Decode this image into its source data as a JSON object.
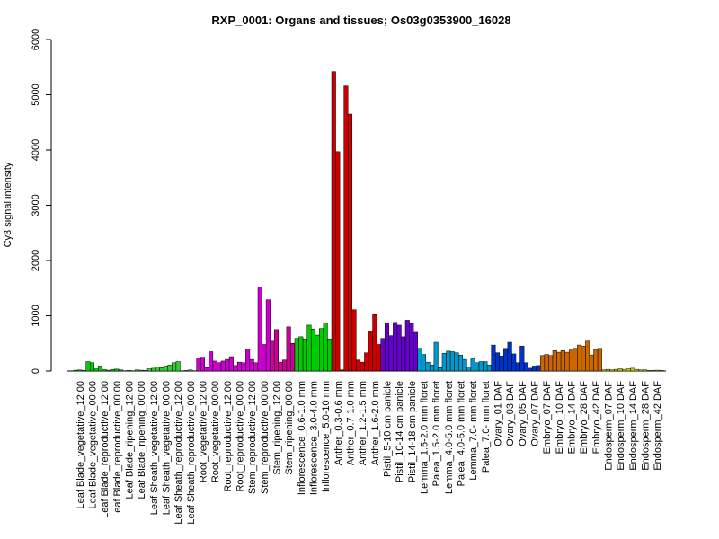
{
  "chart_data": {
    "type": "bar",
    "title": "RXP_0001: Organs and tissues; Os03g0353900_16028",
    "xlabel": "",
    "ylabel": "Cy3 signal intensity",
    "ylim": [
      0,
      6000
    ],
    "yticks": [
      0,
      1000,
      2000,
      3000,
      4000,
      5000,
      6000
    ],
    "grid": false,
    "categories": [
      "Leaf Blade_vegetative_12:00",
      "Leaf Blade_vegetative_00:00",
      "Leaf Blade_reproductive_12:00",
      "Leaf Blade_reproductive_00:00",
      "Leaf Blade_ripening_12:00",
      "Leaf Blade_ripening_00:00",
      "Leaf Sheath_vegetative_12:00",
      "Leaf Sheath_vegetative_00:00",
      "Leaf Sheath_reproductive_12:00",
      "Leaf Sheath_reproductive_00:00",
      "Root_vegetative_12:00",
      "Root_vegetative_00:00",
      "Root_reproductive_12:00",
      "Root_reproductive_00:00",
      "Stem_reproductive_12:00",
      "Stem_reproductive_00:00",
      "Stem_ripening_12:00",
      "Stem_ripening_00:00",
      "Inflorescence_0.6-1.0 mm",
      "Inflorescence_3.0-4.0 mm",
      "Inflorescence_5.0-10 mm",
      "Anther_0.3-0.6 mm",
      "Anther_0.7-1.0 mm",
      "Anther_1.2-1.5 mm",
      "Anther_1.6-2.0 mm",
      "Pistil_5-10 cm panicle",
      "Pistil_10-14 cm panicle",
      "Pistil_14-18 cm panicle",
      "Lemma_1.5-2.0 mm floret",
      "Palea_1.5-2.0 mm floret",
      "Lemma_4.0-5.0 mm floret",
      "Palea_4.0-5.0 mm floret",
      "Lemma_7.0- mm floret",
      "Palea_7.0- mm floret",
      "Ovary_01 DAF",
      "Ovary_03 DAF",
      "Ovary_05 DAF",
      "Ovary_07 DAF",
      "Embryo_07 DAF",
      "Embryo_10 DAF",
      "Embryo_14 DAF",
      "Embryo_28 DAF",
      "Embryo_42 DAF",
      "Endosperm_07 DAF",
      "Endosperm_10 DAF",
      "Endosperm_14 DAF",
      "Endosperm_28 DAF",
      "Endosperm_42 DAF"
    ],
    "groups": [
      {
        "color": "#00CC00",
        "values": [
          [
            15,
            20,
            10
          ],
          [
            170,
            150,
            40
          ],
          [
            90,
            25,
            15
          ],
          [
            30,
            35,
            20
          ]
        ]
      },
      {
        "color": "#33CC33",
        "values": [
          [
            5,
            10,
            5
          ],
          [
            20,
            15,
            10
          ],
          [
            40,
            50,
            70
          ],
          [
            60,
            90,
            110
          ],
          [
            150,
            170,
            5
          ],
          [
            10,
            20,
            5
          ]
        ]
      },
      {
        "color": "#CC00CC",
        "values": [
          [
            240,
            250,
            60
          ],
          [
            350,
            180,
            150
          ],
          [
            180,
            210,
            260
          ],
          [
            100,
            160,
            150
          ],
          [
            400,
            210,
            150
          ],
          [
            1520,
            480,
            1290
          ]
        ]
      },
      {
        "color": "#CC0099",
        "values": [
          [
            540,
            750,
            160
          ],
          [
            200,
            800,
            500
          ]
        ]
      },
      {
        "color": "#00CC00",
        "values": [
          [
            590,
            620,
            580
          ],
          [
            830,
            760,
            650
          ],
          [
            770,
            870,
            580
          ]
        ]
      },
      {
        "color": "#CC0000",
        "values": [
          [
            5420,
            3970,
            20
          ],
          [
            5160,
            4650,
            1110
          ],
          [
            200,
            160,
            330
          ],
          [
            720,
            1020,
            480
          ]
        ]
      },
      {
        "color": "#6600CC",
        "values": [
          [
            590,
            870,
            640
          ],
          [
            880,
            830,
            620
          ],
          [
            920,
            860,
            700
          ]
        ]
      },
      {
        "color": "#0099CC",
        "values": [
          [
            410,
            300,
            160
          ],
          [
            110,
            520,
            60
          ],
          [
            320,
            360,
            350
          ],
          [
            330,
            290,
            210
          ],
          [
            70,
            220,
            150
          ],
          [
            170,
            170,
            110
          ]
        ]
      },
      {
        "color": "#0033CC",
        "values": [
          [
            470,
            330,
            270
          ],
          [
            410,
            520,
            310
          ],
          [
            150,
            450,
            150
          ],
          [
            50,
            90,
            100
          ]
        ]
      },
      {
        "color": "#CC6600",
        "values": [
          [
            280,
            300,
            280
          ],
          [
            370,
            340,
            370
          ],
          [
            340,
            380,
            410
          ],
          [
            470,
            450,
            540
          ],
          [
            290,
            390,
            410
          ]
        ]
      },
      {
        "color": "#CCCC00",
        "values": [
          [
            20,
            30,
            20
          ],
          [
            30,
            40,
            30
          ],
          [
            40,
            50,
            30
          ],
          [
            20,
            20,
            10
          ],
          [
            10,
            15,
            10
          ]
        ]
      }
    ]
  }
}
